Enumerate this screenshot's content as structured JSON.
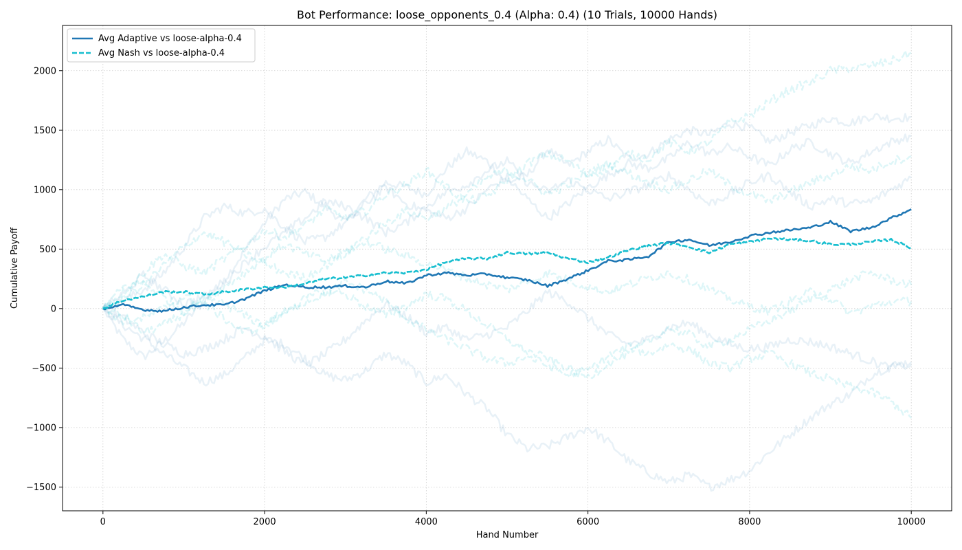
{
  "chart_data": {
    "type": "line",
    "title": "Bot Performance: loose_opponents_0.4 (Alpha: 0.4) (10 Trials, 10000 Hands)",
    "xlabel": "Hand Number",
    "ylabel": "Cumulative Payoff",
    "xlim": [
      -500,
      10500
    ],
    "ylim": [
      -1700,
      2380
    ],
    "xticks": [
      0,
      2000,
      4000,
      6000,
      8000,
      10000
    ],
    "xtick_labels": [
      "0",
      "2000",
      "4000",
      "6000",
      "8000",
      "10000"
    ],
    "yticks": [
      -1500,
      -1000,
      -500,
      0,
      500,
      1000,
      1500,
      2000
    ],
    "ytick_labels": [
      "−1500",
      "−1000",
      "−500",
      "0",
      "500",
      "1000",
      "1500",
      "2000"
    ],
    "grid": true,
    "legend_position": "top-left",
    "colors": {
      "adaptive": "#1f77b4",
      "nash": "#17becf"
    },
    "series": [
      {
        "name": "Avg Adaptive vs loose-alpha-0.4",
        "style": "solid",
        "x": [
          0,
          250,
          500,
          750,
          1000,
          1250,
          1500,
          1750,
          2000,
          2250,
          2500,
          2750,
          3000,
          3250,
          3500,
          3750,
          4000,
          4250,
          4500,
          4750,
          5000,
          5250,
          5500,
          5750,
          6000,
          6250,
          6500,
          6750,
          7000,
          7250,
          7500,
          7750,
          8000,
          8250,
          8500,
          8750,
          9000,
          9250,
          9500,
          9750,
          10000
        ],
        "y": [
          0,
          30,
          -10,
          -20,
          10,
          30,
          30,
          80,
          150,
          200,
          180,
          180,
          190,
          180,
          230,
          210,
          280,
          300,
          280,
          290,
          260,
          240,
          190,
          250,
          320,
          400,
          410,
          440,
          560,
          580,
          530,
          560,
          610,
          640,
          660,
          680,
          730,
          650,
          680,
          760,
          835
        ]
      },
      {
        "name": "Avg Nash vs loose-alpha-0.4",
        "style": "dashed",
        "x": [
          0,
          250,
          500,
          750,
          1000,
          1250,
          1500,
          1750,
          2000,
          2250,
          2500,
          2750,
          3000,
          3250,
          3500,
          3750,
          4000,
          4250,
          4500,
          4750,
          5000,
          5250,
          5500,
          5750,
          6000,
          6250,
          6500,
          6750,
          7000,
          7250,
          7500,
          7750,
          8000,
          8250,
          8500,
          8750,
          9000,
          9250,
          9500,
          9750,
          10000
        ],
        "y": [
          0,
          70,
          100,
          140,
          140,
          120,
          140,
          160,
          180,
          180,
          210,
          250,
          260,
          280,
          300,
          300,
          330,
          390,
          420,
          420,
          470,
          460,
          470,
          420,
          390,
          430,
          490,
          530,
          550,
          520,
          470,
          540,
          560,
          590,
          580,
          570,
          540,
          540,
          560,
          580,
          510
        ]
      }
    ],
    "trial_traces": [
      {
        "group": "adaptive",
        "y": [
          0,
          -260,
          -410,
          -280,
          -120,
          60,
          240,
          480,
          720,
          920,
          980,
          860,
          720,
          920,
          1060,
          1020,
          960,
          1180,
          1320,
          1240,
          1060,
          1120,
          1340,
          1200,
          1320,
          1420,
          1260,
          1300,
          1420,
          1500,
          1460,
          1560,
          1520,
          1400,
          1480,
          1540,
          1600,
          1560,
          1620,
          1600,
          1610
        ]
      },
      {
        "group": "adaptive",
        "y": [
          0,
          -140,
          -250,
          -380,
          -500,
          -620,
          -560,
          -420,
          -260,
          -300,
          -420,
          -560,
          -600,
          -520,
          -380,
          -460,
          -620,
          -560,
          -720,
          -840,
          -1060,
          -1180,
          -1160,
          -1080,
          -1000,
          -1120,
          -1280,
          -1380,
          -1460,
          -1400,
          -1500,
          -1440,
          -1360,
          -1200,
          -1060,
          -920,
          -800,
          -720,
          -560,
          -480,
          -450
        ]
      },
      {
        "group": "adaptive",
        "y": [
          0,
          60,
          160,
          300,
          520,
          760,
          860,
          800,
          840,
          680,
          560,
          600,
          720,
          880,
          1020,
          880,
          820,
          760,
          840,
          1000,
          1100,
          920,
          760,
          880,
          1020,
          1120,
          1220,
          1180,
          1260,
          1400,
          1300,
          1360,
          1280,
          1200,
          1340,
          1400,
          1300,
          1220,
          1320,
          1400,
          1450
        ]
      },
      {
        "group": "adaptive",
        "y": [
          0,
          -80,
          -200,
          -300,
          -380,
          -340,
          -260,
          -160,
          -240,
          -360,
          -480,
          -380,
          -260,
          -100,
          40,
          -60,
          -200,
          -160,
          -260,
          -220,
          -160,
          -20,
          140,
          60,
          -80,
          -220,
          -300,
          -260,
          -160,
          -120,
          -220,
          -300,
          -340,
          -320,
          -260,
          -280,
          -320,
          -380,
          -440,
          -500,
          -470
        ]
      },
      {
        "group": "adaptive",
        "y": [
          0,
          120,
          280,
          160,
          40,
          100,
          220,
          380,
          520,
          640,
          760,
          900,
          860,
          760,
          640,
          720,
          860,
          980,
          1040,
          1160,
          1240,
          1060,
          980,
          1080,
          1000,
          920,
          980,
          1040,
          1120,
          1000,
          880,
          960,
          1060,
          1120,
          980,
          860,
          920,
          880,
          900,
          1000,
          1100
        ]
      },
      {
        "group": "nash",
        "y": [
          0,
          140,
          300,
          460,
          360,
          300,
          420,
          520,
          660,
          600,
          700,
          840,
          760,
          820,
          960,
          1040,
          1160,
          1020,
          900,
          940,
          1080,
          1220,
          1300,
          1240,
          1120,
          1180,
          1300,
          1260,
          1400,
          1320,
          1400,
          1560,
          1620,
          1740,
          1840,
          1900,
          2000,
          2020,
          2040,
          2080,
          2150
        ]
      },
      {
        "group": "nash",
        "y": [
          0,
          -60,
          -200,
          -140,
          -40,
          80,
          40,
          -60,
          -140,
          -40,
          60,
          120,
          220,
          160,
          60,
          -80,
          -180,
          -260,
          -340,
          -420,
          -460,
          -400,
          -480,
          -560,
          -520,
          -400,
          -320,
          -380,
          -300,
          -340,
          -460,
          -500,
          -420,
          -380,
          -460,
          -540,
          -600,
          -660,
          -700,
          -780,
          -920
        ]
      },
      {
        "group": "nash",
        "y": [
          0,
          180,
          220,
          100,
          -20,
          60,
          180,
          300,
          420,
          540,
          460,
          400,
          480,
          600,
          720,
          820,
          760,
          840,
          960,
          1100,
          1160,
          1080,
          960,
          1040,
          1140,
          1220,
          1140,
          1060,
          1000,
          1080,
          1160,
          1040,
          960,
          900,
          980,
          1060,
          1120,
          1200,
          1160,
          1240,
          1280
        ]
      },
      {
        "group": "nash",
        "y": [
          0,
          -100,
          -80,
          0,
          100,
          40,
          -80,
          -200,
          -140,
          -20,
          80,
          160,
          120,
          20,
          -60,
          20,
          120,
          80,
          -20,
          -140,
          -260,
          -360,
          -420,
          -500,
          -580,
          -460,
          -380,
          -280,
          -160,
          -220,
          -320,
          -260,
          -180,
          -100,
          -20,
          80,
          160,
          240,
          300,
          240,
          200
        ]
      },
      {
        "group": "nash",
        "y": [
          0,
          80,
          200,
          360,
          520,
          640,
          560,
          460,
          380,
          300,
          260,
          360,
          460,
          560,
          500,
          440,
          380,
          320,
          260,
          200,
          160,
          220,
          300,
          240,
          180,
          140,
          200,
          260,
          300,
          240,
          160,
          80,
          20,
          -20,
          60,
          140,
          80,
          -40,
          20,
          60,
          60
        ]
      }
    ]
  }
}
